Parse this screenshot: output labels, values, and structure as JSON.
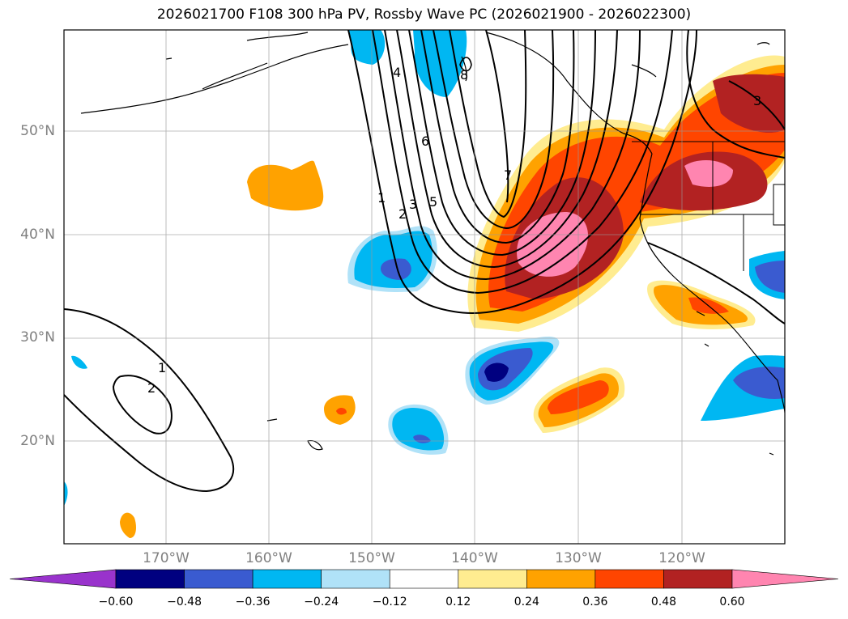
{
  "title": "2026021700 F108 300 hPa PV, Rossby Wave PC (2026021900 - 2026022300)",
  "lat_labels": [
    "50°N",
    "40°N",
    "30°N",
    "20°N"
  ],
  "lon_labels": [
    "170°W",
    "160°W",
    "150°W",
    "140°W",
    "130°W",
    "120°W"
  ],
  "colorbar": {
    "ticks": [
      "−0.60",
      "−0.48",
      "−0.36",
      "−0.24",
      "−0.12",
      "0.12",
      "0.24",
      "0.36",
      "0.48",
      "0.60"
    ],
    "colors": [
      "#9933cc",
      "#000080",
      "#3a5bd0",
      "#00b7f2",
      "#b0e2f8",
      "#ffffff",
      "#ffec90",
      "#ffa200",
      "#ff4500",
      "#b22222",
      "#ff85b0"
    ]
  },
  "contour_labels": [
    "1",
    "2",
    "3",
    "4",
    "5",
    "6",
    "7",
    "8",
    "1",
    "2",
    "3"
  ]
}
